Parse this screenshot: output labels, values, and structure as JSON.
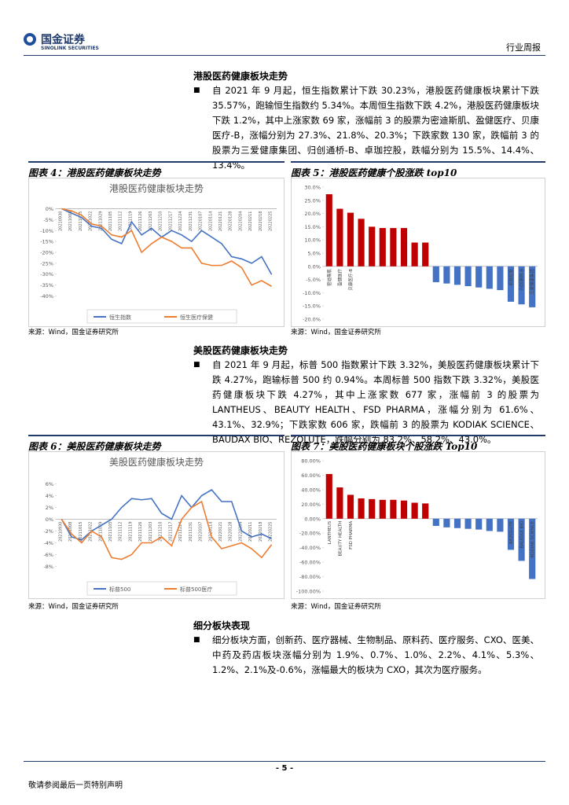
{
  "header": {
    "company": "国金证券",
    "company_en": "SINOLINK SECURITIES",
    "doc_type": "行业周报"
  },
  "sections": [
    {
      "heading": "港股医药健康板块走势",
      "paragraph": "自 2021 年 9 月起，恒生指数累计下跌 30.23%，港股医药健康板块累计下跌 35.57%，跑输恒生指数约 5.34%。本周恒生指数下跌 4.2%，港股医药健康板块下跌 1.2%，其中上涨家数 69 家，涨幅前 3 的股票为密迪斯肌、盈健医疗、贝康医疗-B，涨幅分别为 27.3%、21.8%、20.3%；下跌家数 130 家，跌幅前 3 的股票为三爱健康集团、归创通桥-B、卓珈控股，跌幅分别为 15.5%、14.4%、13.4%。"
    },
    {
      "heading": "美股医药健康板块走势",
      "paragraph": "自 2021 年 9 月起，标普 500 指数累计下跌 3.32%，美股医药健康板块累计下跌 4.27%，跑输标普 500 约 0.94%。本周标普 500 指数下跌 3.32%，美股医药健康板块下跌 4.27%，其中上涨家数 677 家，涨幅前 3 的股票为 LANTHEUS、BEAUTY HEALTH、FSD PHARMA，涨幅分别为 61.6%、43.1%、32.9%；下跌家数 606 家，跌幅前 3 的股票为 KODIAK SCIENCE、BAUDAX BIO、REZOLUTE，跌幅分别为 83.2%、58.2%、43.0%。"
    },
    {
      "heading": "细分板块表现",
      "paragraph": "细分板块方面，创新药、医疗器械、生物制品、原料药、医疗服务、CXO、医美、中药及药店板块涨幅分别为 1.9%、0.7%、1.0%、2.2%、4.1%、5.3%、1.2%、2.1%及-0.6%，涨幅最大的板块为 CXO，其次为医疗服务。"
    }
  ],
  "figures": [
    {
      "caption": "图表 4：港股医药健康板块走势",
      "source": "来源：Wind，国金证券研究所"
    },
    {
      "caption": "图表 5：港股医药健康个股涨跌 top10",
      "source": "来源：Wind，国金证券研究所"
    },
    {
      "caption": "图表 6：美股医药健康板块走势",
      "source": "来源：Wind，国金证券研究所"
    },
    {
      "caption": "图表 7：美股医药健康板块个股涨跌 Top10",
      "source": "来源：Wind，国金证券研究所"
    }
  ],
  "footer": {
    "page": "- 5 -",
    "disclaimer": "敬请参阅最后一页特别声明"
  },
  "chart_data": [
    {
      "type": "line",
      "title": "港股医药健康板块走势",
      "categories": [
        "20210930",
        "20211008",
        "20211015",
        "20211022",
        "20211029",
        "20211105",
        "20211112",
        "20211119",
        "20211126",
        "20211203",
        "20211210",
        "20211217",
        "20211224",
        "20211231",
        "20220107",
        "20220114",
        "20220121",
        "20220128",
        "20220204",
        "20220211",
        "20220218",
        "20220225"
      ],
      "series": [
        {
          "name": "恒生指数",
          "color": "#4472c4",
          "values": [
            0,
            -2,
            -4,
            -8,
            -9,
            -14,
            -16,
            -6,
            -12,
            -9,
            -13,
            -10,
            -12,
            -15,
            -10,
            -13,
            -16,
            -22,
            -23,
            -25,
            -22,
            -30.2
          ]
        },
        {
          "name": "恒生医疗保健",
          "color": "#ed7d31",
          "values": [
            0,
            -1,
            -3,
            -7,
            -8,
            -12,
            -13,
            -10,
            -20,
            -16,
            -13,
            -15,
            -18,
            -18,
            -25,
            -26,
            -26,
            -24,
            -27,
            -35,
            -33,
            -35.6
          ]
        }
      ],
      "ylim": [
        -42,
        2
      ],
      "yticks": [
        {
          "value": 0,
          "label": "0%"
        },
        {
          "value": -5,
          "label": "-5%"
        },
        {
          "value": -10,
          "label": "-10%"
        },
        {
          "value": -15,
          "label": "-15%"
        },
        {
          "value": -20,
          "label": "-20%"
        },
        {
          "value": -25,
          "label": "-25%"
        },
        {
          "value": -30,
          "label": "-30%"
        },
        {
          "value": -35,
          "label": "-35%"
        },
        {
          "value": -40,
          "label": "-40%"
        }
      ],
      "grid": false,
      "legend": "bottom"
    },
    {
      "type": "bar",
      "categories": [
        "密迪斯肌",
        "盈健医疗",
        "贝康医疗-B",
        null,
        null,
        null,
        null,
        null,
        null,
        null,
        null,
        null,
        null,
        null,
        null,
        null,
        null,
        "卓珈控股",
        "归创通桥-B",
        "三爱健康集团"
      ],
      "values": [
        27.3,
        21.8,
        20.3,
        18,
        15,
        14.5,
        14.5,
        14.5,
        9,
        9,
        -6,
        -6.5,
        -7,
        -7.5,
        -8,
        -8.5,
        -9,
        -13.4,
        -14.4,
        -15.5
      ],
      "color_positive": "#c00000",
      "color_negative": "#4472c4",
      "ylim": [
        -20,
        30
      ],
      "yticks": [
        {
          "value": 30,
          "label": "30.0%"
        },
        {
          "value": 25,
          "label": "25.0%"
        },
        {
          "value": 20,
          "label": "20.0%"
        },
        {
          "value": 15,
          "label": "15.0%"
        },
        {
          "value": 10,
          "label": "10.0%"
        },
        {
          "value": 5,
          "label": "5.0%"
        },
        {
          "value": 0,
          "label": "0.0%"
        },
        {
          "value": -5,
          "label": "-5.0%"
        },
        {
          "value": -10,
          "label": "-10.0%"
        },
        {
          "value": -15,
          "label": "-15.0%"
        },
        {
          "value": -20,
          "label": "-20.0%"
        }
      ]
    },
    {
      "type": "line",
      "title": "美股医药健康板块走势",
      "categories": [
        "20210930",
        "20211008",
        "20211015",
        "20211022",
        "20211029",
        "20211105",
        "20211112",
        "20211119",
        "20211126",
        "20211203",
        "20211210",
        "20211217",
        "20211224",
        "20211231",
        "20220107",
        "20220114",
        "20220121",
        "20220128",
        "20220204",
        "20220211",
        "20220218",
        "20220225"
      ],
      "series": [
        {
          "name": "标普500",
          "color": "#4472c4",
          "values": [
            0,
            -3,
            -3.5,
            -2,
            -1,
            0,
            2,
            3.5,
            3.3,
            3.5,
            1,
            0,
            4,
            2,
            4,
            5,
            3,
            3,
            -2,
            -3,
            -2.5,
            -3.3
          ]
        },
        {
          "name": "标普500医疗",
          "color": "#ed7d31",
          "values": [
            0,
            -2.5,
            -4,
            -2,
            -3,
            -6.5,
            -6.8,
            -6,
            -4,
            -4,
            -3,
            -4.5,
            0,
            2,
            3,
            -3,
            -5,
            -4.5,
            -4,
            -5,
            -6.5,
            -4.3
          ]
        }
      ],
      "ylim": [
        -9,
        7
      ],
      "yticks": [
        {
          "value": 6,
          "label": "6%"
        },
        {
          "value": 4,
          "label": "4%"
        },
        {
          "value": 2,
          "label": "2%"
        },
        {
          "value": 0,
          "label": "0%"
        },
        {
          "value": -2,
          "label": "-2%"
        },
        {
          "value": -4,
          "label": "-4%"
        },
        {
          "value": -6,
          "label": "-6%"
        },
        {
          "value": -8,
          "label": "-8%"
        }
      ],
      "grid": false,
      "legend": "bottom"
    },
    {
      "type": "bar",
      "categories": [
        "LANTHEUS",
        "BEAUTY HEALTH",
        "FSD PHARMA",
        null,
        null,
        null,
        null,
        null,
        null,
        null,
        null,
        null,
        null,
        null,
        null,
        null,
        null,
        "REZOLUTE",
        "BAUDAX BIO",
        "KODIAK SCIENCE"
      ],
      "values": [
        61.6,
        43.1,
        32.9,
        28,
        27,
        26,
        26,
        25,
        22,
        21,
        -10,
        -12,
        -13,
        -14,
        -15,
        -17,
        -18,
        -43,
        -58.2,
        -83.2
      ],
      "color_positive": "#c00000",
      "color_negative": "#4472c4",
      "ylim": [
        -100,
        80
      ],
      "yticks": [
        {
          "value": 80,
          "label": "80.00%"
        },
        {
          "value": 60,
          "label": "60.00%"
        },
        {
          "value": 40,
          "label": "40.00%"
        },
        {
          "value": 20,
          "label": "20.00%"
        },
        {
          "value": 0,
          "label": "0.00%"
        },
        {
          "value": -20,
          "label": "-20.00%"
        },
        {
          "value": -40,
          "label": "-40.00%"
        },
        {
          "value": -60,
          "label": "-60.00%"
        },
        {
          "value": -80,
          "label": "-80.00%"
        },
        {
          "value": -100,
          "label": "-100.00%"
        }
      ]
    }
  ]
}
